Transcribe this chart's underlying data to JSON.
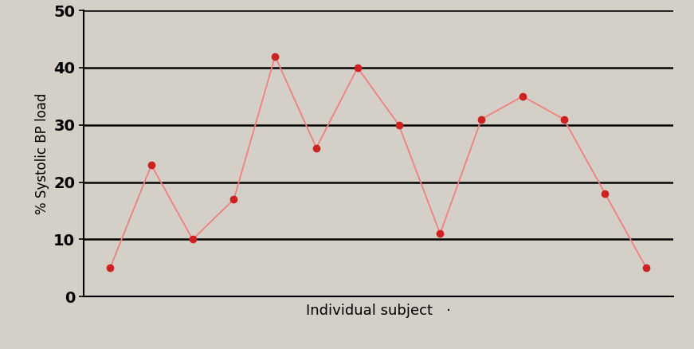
{
  "x_values": [
    1,
    2,
    3,
    4,
    5,
    6,
    7,
    8,
    9,
    10,
    11,
    12,
    13,
    14
  ],
  "y_values": [
    5,
    23,
    10,
    17,
    42,
    26,
    40,
    30,
    11,
    31,
    35,
    31,
    18,
    5
  ],
  "line_color": "#f08080",
  "marker_color": "#cc2222",
  "marker_size": 6,
  "line_width": 1.3,
  "ylabel": "% Systolic BP load",
  "xlabel": "Individual subject",
  "ylim": [
    0,
    50
  ],
  "yticks": [
    0,
    10,
    20,
    30,
    40,
    50
  ],
  "grid_color": "#000000",
  "background_color": "#d4d0c8",
  "plot_bg_color": "#d4d0c8",
  "axis_fontsize": 13,
  "ylabel_fontsize": 12,
  "tick_fontsize": 14,
  "grid_linewidth": 1.8,
  "spine_linewidth": 1.5
}
